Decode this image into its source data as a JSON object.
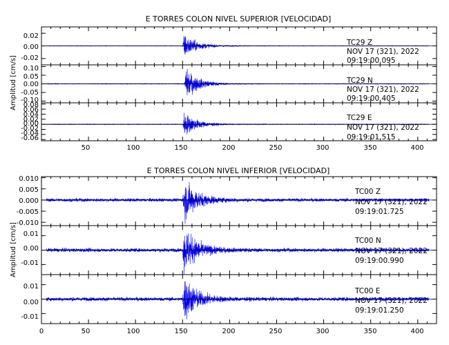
{
  "chart_data": [
    {
      "type": "line",
      "title": "E TORRES COLON NIVEL SUPERIOR [VELOCIDAD]",
      "ylabel": "Amplitud [cm/s]",
      "xlim": [
        0,
        420
      ],
      "xticks": [
        "50",
        "100",
        "150",
        "200",
        "250",
        "300",
        "350",
        "400"
      ],
      "panels": [
        {
          "component": "Z",
          "station": "TC29   Z",
          "date": "NOV 17 (321), 2022",
          "time": "09:19:00.095",
          "ylim": [
            -0.03,
            0.03
          ],
          "yticks": [
            "0.02",
            "0.00",
            "-0.02"
          ],
          "onset_s": 150,
          "peak_amplitude": 0.02,
          "noise_amplitude": 0.0003
        },
        {
          "component": "N",
          "station": "TC29   N",
          "date": "NOV 17 (321), 2022",
          "time": "09:19:00.405",
          "ylim": [
            -0.11,
            0.11
          ],
          "yticks": [
            "0.10",
            "0.05",
            "0.00",
            "-0.05",
            "-0.10"
          ],
          "onset_s": 152,
          "peak_amplitude": 0.09,
          "noise_amplitude": 0.0015
        },
        {
          "component": "E",
          "station": "TC29   E",
          "date": "NOV 17 (321), 2022",
          "time": "09:19:01.515",
          "ylim": [
            -0.065,
            0.085
          ],
          "yticks": [
            "0.08",
            "0.06",
            "0.04",
            "0.02",
            "0.00",
            "-0.02",
            "-0.04",
            "-0.06"
          ],
          "onset_s": 150,
          "peak_amplitude": 0.05,
          "noise_amplitude": 0.001
        }
      ]
    },
    {
      "type": "line",
      "title": "E TORRES COLON NIVEL INFERIOR [VELOCIDAD]",
      "ylabel": "Amplitud [cm/s]",
      "xlim": [
        0,
        420
      ],
      "xticks": [
        "0",
        "50",
        "100",
        "150",
        "200",
        "250",
        "300",
        "350",
        "400"
      ],
      "panels": [
        {
          "component": "Z",
          "station": "TC00   Z",
          "date": "NOV 17 (321), 2022",
          "time": "09:19:01.725",
          "ylim": [
            -0.0115,
            0.0105
          ],
          "yticks": [
            "0.010",
            "0.005",
            "0.000",
            "-0.005",
            "-0.010"
          ],
          "onset_s": 150,
          "peak_amplitude": 0.0095,
          "noise_amplitude": 0.0007
        },
        {
          "component": "N",
          "station": "TC00   N",
          "date": "NOV 17 (321), 2022",
          "time": "09:19:00.990",
          "ylim": [
            -0.017,
            0.017
          ],
          "yticks": [
            "0.01",
            "0.00",
            "-0.01"
          ],
          "onset_s": 150,
          "peak_amplitude": 0.016,
          "noise_amplitude": 0.0012
        },
        {
          "component": "E",
          "station": "TC00   E",
          "date": "NOV 17 (321), 2022",
          "time": "09:19:01.250",
          "ylim": [
            -0.017,
            0.017
          ],
          "yticks": [
            "0.01",
            "0.00",
            "-0.01"
          ],
          "onset_s": 150,
          "peak_amplitude": 0.016,
          "noise_amplitude": 0.0012
        }
      ]
    }
  ],
  "colors": {
    "trace": "#0000ee",
    "axes": "#000000"
  }
}
